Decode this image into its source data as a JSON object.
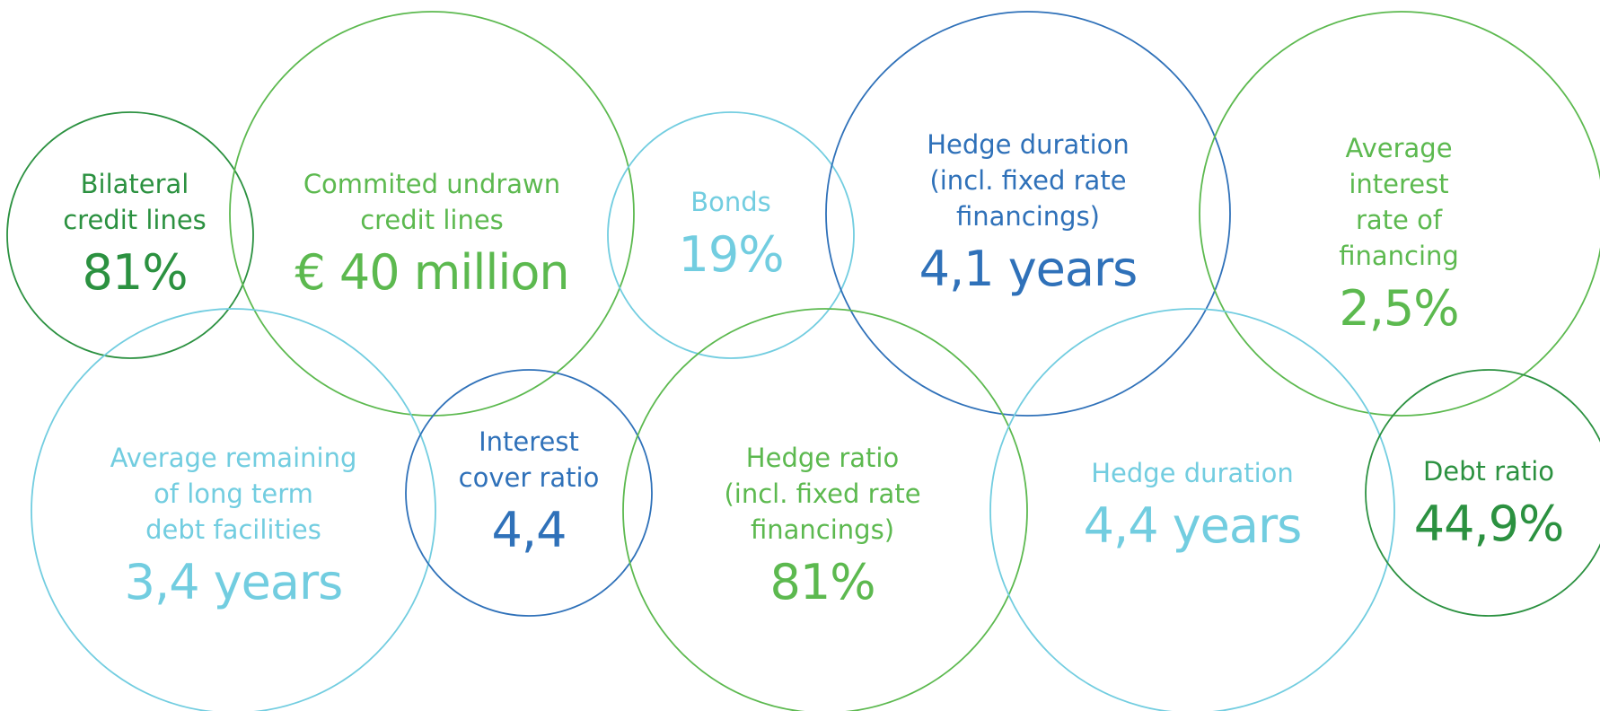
{
  "colors": {
    "dark_green": "#2b9140",
    "green": "#5cb94f",
    "blue": "#2f71b9",
    "light_blue": "#72cde0"
  },
  "metrics": [
    {
      "label": "Bilateral\ncredit lines",
      "value": "81%"
    },
    {
      "label": "Commited undrawn\ncredit lines",
      "value": "€ 40 million"
    },
    {
      "label": "Bonds",
      "value": "19%"
    },
    {
      "label": "Hedge duration\n(incl. fixed rate\nfinancings)",
      "value": "4,1 years"
    },
    {
      "label": "Average interest\nrate of financing",
      "value": "2,5%"
    },
    {
      "label": "Average remaining\nof long term\ndebt facilities",
      "value": "3,4 years"
    },
    {
      "label": "Interest\ncover ratio",
      "value": "4,4"
    },
    {
      "label": "Hedge ratio\n(incl. fixed rate\nfinancings)",
      "value": "81%"
    },
    {
      "label": "Hedge duration",
      "value": "4,4 years"
    },
    {
      "label": "Debt ratio",
      "value": "44,9%"
    }
  ]
}
